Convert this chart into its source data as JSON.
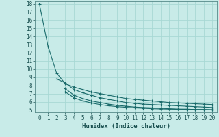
{
  "title": "",
  "xlabel": "Humidex (Indice chaleur)",
  "bg_color": "#c8ebe8",
  "grid_color": "#a8d8d4",
  "line_color": "#1a6b6b",
  "xlim": [
    -0.5,
    20.5
  ],
  "ylim": [
    4.7,
    18.3
  ],
  "xticks": [
    0,
    1,
    2,
    3,
    4,
    5,
    6,
    7,
    8,
    9,
    10,
    11,
    12,
    13,
    14,
    15,
    16,
    17,
    18,
    19,
    20
  ],
  "yticks": [
    5,
    6,
    7,
    8,
    9,
    10,
    11,
    12,
    13,
    14,
    15,
    16,
    17,
    18
  ],
  "series": [
    {
      "x": [
        0,
        1,
        2,
        3,
        4,
        5,
        6,
        7,
        8,
        9,
        10,
        11,
        12,
        13,
        14,
        15,
        16,
        17,
        18,
        19,
        20
      ],
      "y": [
        18.0,
        12.8,
        9.5,
        8.2,
        7.8,
        7.5,
        7.2,
        7.0,
        6.8,
        6.6,
        6.4,
        6.3,
        6.2,
        6.1,
        6.0,
        5.9,
        5.85,
        5.8,
        5.75,
        5.7,
        5.65
      ]
    },
    {
      "x": [
        2,
        3,
        4,
        5,
        6,
        7,
        8,
        9,
        10,
        11,
        12,
        13,
        14,
        15,
        16,
        17,
        18,
        19,
        20
      ],
      "y": [
        8.8,
        8.3,
        7.5,
        7.1,
        6.8,
        6.5,
        6.3,
        6.1,
        5.9,
        5.8,
        5.7,
        5.65,
        5.6,
        5.55,
        5.5,
        5.45,
        5.4,
        5.35,
        5.3
      ]
    },
    {
      "x": [
        3,
        4,
        5,
        6,
        7,
        8,
        9,
        10,
        11,
        12,
        13,
        14,
        15,
        16,
        17,
        18,
        19,
        20
      ],
      "y": [
        7.6,
        6.8,
        6.4,
        6.1,
        5.9,
        5.7,
        5.55,
        5.45,
        5.35,
        5.3,
        5.25,
        5.2,
        5.15,
        5.1,
        5.1,
        5.05,
        5.05,
        5.0
      ]
    },
    {
      "x": [
        3,
        4,
        5,
        6,
        7,
        8,
        9,
        10,
        11,
        12,
        13,
        14,
        15,
        16,
        17,
        18,
        19,
        20
      ],
      "y": [
        7.2,
        6.5,
        6.1,
        5.85,
        5.65,
        5.5,
        5.4,
        5.32,
        5.25,
        5.2,
        5.15,
        5.12,
        5.1,
        5.08,
        5.07,
        5.06,
        5.05,
        5.04
      ]
    }
  ]
}
